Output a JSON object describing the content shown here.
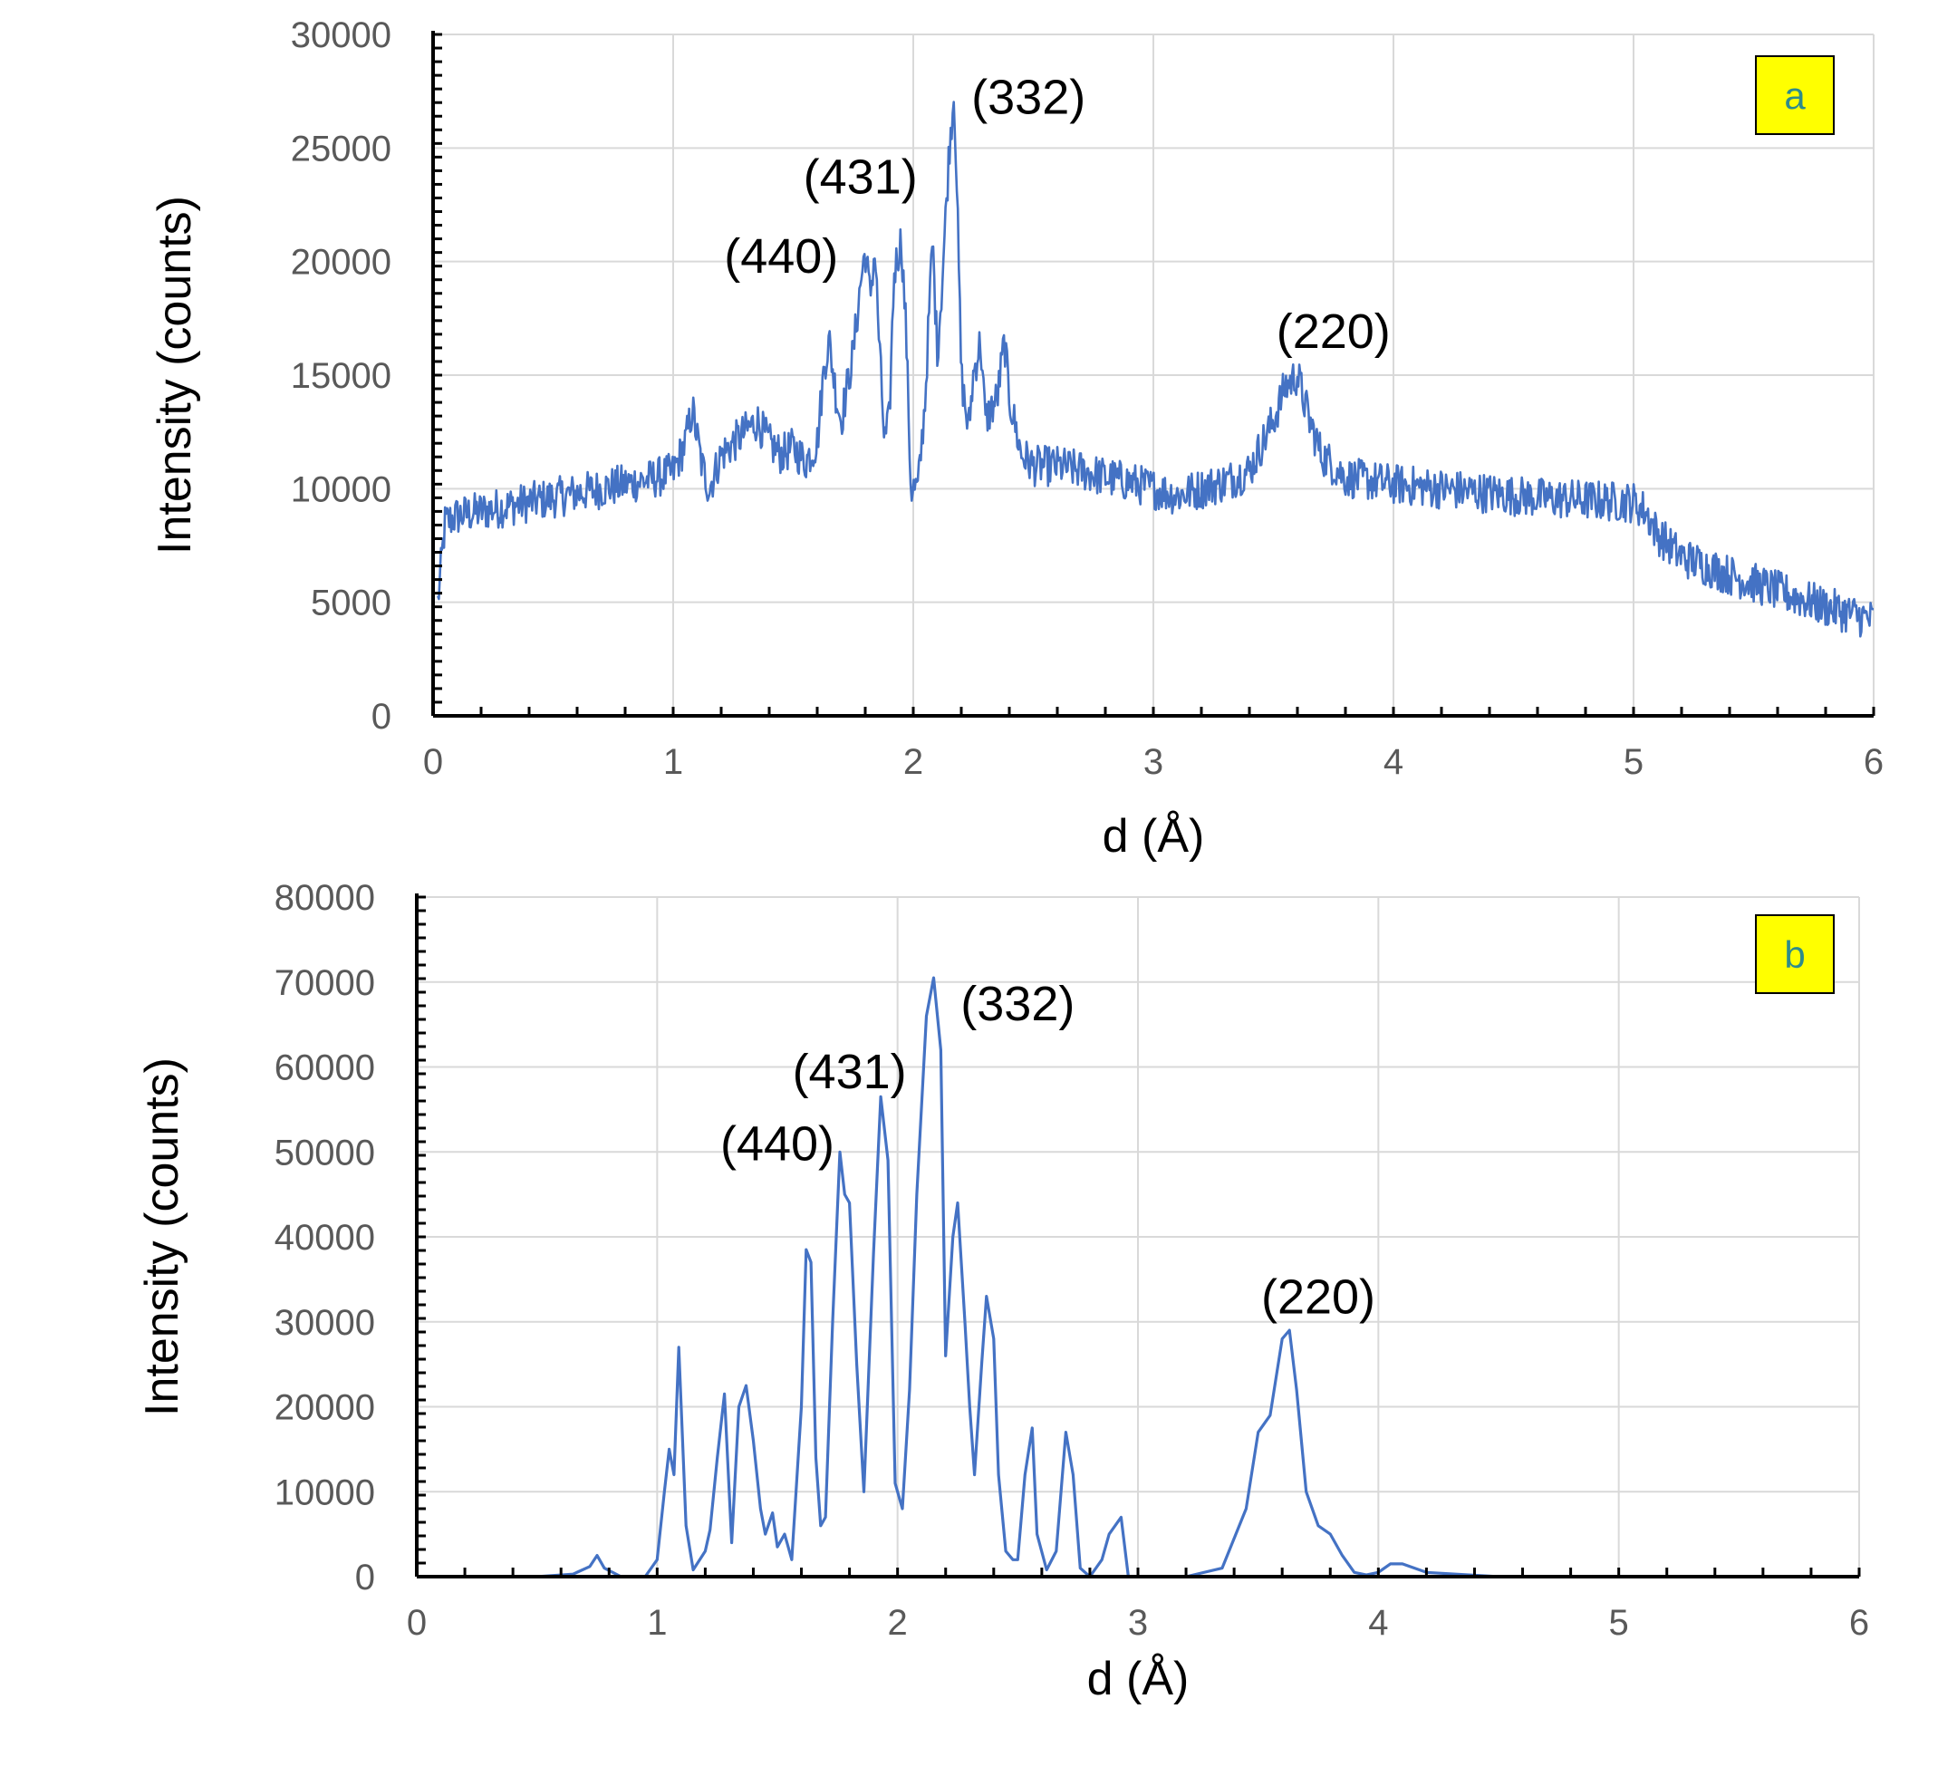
{
  "colors": {
    "series": "#4472C4",
    "grid": "#d9d9d9",
    "axis": "#000000",
    "tick_label": "#595959",
    "badge_fill": "#ffff00",
    "badge_text": "#2e8b8b"
  },
  "chart_data": [
    {
      "type": "line",
      "panel_label": "a",
      "xlabel": "d (Å)",
      "ylabel": "Intensity (counts)",
      "xlim": [
        0,
        6
      ],
      "ylim": [
        0,
        30000
      ],
      "xticks": [
        0,
        1,
        2,
        3,
        4,
        5,
        6
      ],
      "yticks": [
        0,
        5000,
        10000,
        15000,
        20000,
        25000,
        30000
      ],
      "grid": true,
      "noise_amplitude": 900,
      "annotations": [
        {
          "text": "(440)",
          "x": 1.45,
          "y": 19500
        },
        {
          "text": "(431)",
          "x": 1.78,
          "y": 23000
        },
        {
          "text": "(332)",
          "x": 2.48,
          "y": 26500
        },
        {
          "text": "(220)",
          "x": 3.75,
          "y": 16200
        }
      ],
      "series": [
        {
          "x": [
            0.02,
            0.05,
            0.1,
            0.2,
            0.3,
            0.4,
            0.5,
            0.6,
            0.7,
            0.8,
            0.9,
            1.0,
            1.05,
            1.08,
            1.12,
            1.15,
            1.2,
            1.25,
            1.3,
            1.35,
            1.4,
            1.45,
            1.5,
            1.55,
            1.6,
            1.63,
            1.65,
            1.68,
            1.7,
            1.75,
            1.78,
            1.8,
            1.82,
            1.84,
            1.86,
            1.88,
            1.9,
            1.92,
            1.95,
            1.97,
            1.99,
            2.02,
            2.05,
            2.08,
            2.1,
            2.12,
            2.15,
            2.17,
            2.18,
            2.2,
            2.23,
            2.25,
            2.28,
            2.3,
            2.35,
            2.38,
            2.4,
            2.45,
            2.5,
            2.6,
            2.7,
            2.8,
            2.9,
            3.0,
            3.1,
            3.2,
            3.3,
            3.4,
            3.5,
            3.55,
            3.6,
            3.65,
            3.7,
            3.8,
            4.0,
            4.2,
            4.4,
            4.6,
            4.8,
            5.0,
            5.05,
            5.1,
            5.2,
            5.4,
            5.6,
            5.8,
            6.0
          ],
          "y": [
            5000,
            8500,
            8800,
            9000,
            9200,
            9400,
            9600,
            9800,
            10000,
            10200,
            10400,
            10700,
            12000,
            13500,
            11000,
            10000,
            11500,
            12000,
            12500,
            13000,
            12000,
            11500,
            11800,
            11200,
            12000,
            15500,
            16500,
            14000,
            13000,
            16000,
            19000,
            20500,
            18500,
            20500,
            16000,
            12000,
            13000,
            19500,
            21000,
            17000,
            10000,
            10000,
            14000,
            21000,
            16000,
            19000,
            25000,
            27500,
            24000,
            15000,
            12500,
            15000,
            16500,
            13000,
            14000,
            16500,
            14000,
            11500,
            11000,
            11000,
            10800,
            10500,
            10300,
            10000,
            9700,
            10000,
            10300,
            10800,
            13000,
            14500,
            15000,
            13000,
            11500,
            10500,
            10200,
            10000,
            9800,
            9600,
            9500,
            9400,
            9000,
            8000,
            7000,
            6200,
            5500,
            4800,
            4200
          ]
        }
      ]
    },
    {
      "type": "line",
      "panel_label": "b",
      "xlabel": "d (Å)",
      "ylabel": "Intensity (counts)",
      "xlim": [
        0,
        6
      ],
      "ylim": [
        0,
        80000
      ],
      "xticks": [
        0,
        1,
        2,
        3,
        4,
        5,
        6
      ],
      "yticks": [
        0,
        10000,
        20000,
        30000,
        40000,
        50000,
        60000,
        70000,
        80000
      ],
      "grid": true,
      "annotations": [
        {
          "text": "(440)",
          "x": 1.5,
          "y": 49000
        },
        {
          "text": "(431)",
          "x": 1.8,
          "y": 57500
        },
        {
          "text": "(332)",
          "x": 2.5,
          "y": 65500
        },
        {
          "text": "(220)",
          "x": 3.75,
          "y": 31000
        }
      ],
      "series": [
        {
          "x": [
            0.05,
            0.5,
            0.65,
            0.72,
            0.75,
            0.78,
            0.85,
            0.95,
            1.0,
            1.03,
            1.05,
            1.07,
            1.09,
            1.12,
            1.15,
            1.2,
            1.22,
            1.25,
            1.28,
            1.31,
            1.34,
            1.37,
            1.4,
            1.43,
            1.45,
            1.48,
            1.5,
            1.53,
            1.56,
            1.6,
            1.62,
            1.64,
            1.66,
            1.68,
            1.7,
            1.73,
            1.76,
            1.78,
            1.8,
            1.83,
            1.86,
            1.9,
            1.93,
            1.96,
            1.99,
            2.02,
            2.05,
            2.08,
            2.12,
            2.15,
            2.18,
            2.2,
            2.23,
            2.25,
            2.28,
            2.3,
            2.32,
            2.35,
            2.37,
            2.4,
            2.42,
            2.45,
            2.48,
            2.5,
            2.53,
            2.56,
            2.58,
            2.62,
            2.66,
            2.7,
            2.73,
            2.76,
            2.8,
            2.85,
            2.88,
            2.93,
            2.96,
            3.0,
            3.2,
            3.35,
            3.45,
            3.5,
            3.55,
            3.6,
            3.63,
            3.66,
            3.7,
            3.75,
            3.8,
            3.85,
            3.9,
            3.95,
            4.0,
            4.05,
            4.1,
            4.2,
            4.5,
            5.0,
            5.5,
            6.0
          ],
          "y": [
            0,
            0,
            300,
            1200,
            2500,
            1000,
            0,
            0,
            2000,
            10000,
            15000,
            12000,
            27000,
            6000,
            800,
            3000,
            5500,
            14000,
            21500,
            4000,
            20000,
            22500,
            16000,
            8000,
            5000,
            7500,
            3500,
            5000,
            2000,
            20000,
            38500,
            37000,
            14000,
            6000,
            7000,
            30000,
            50000,
            45000,
            44000,
            25000,
            10000,
            38000,
            56500,
            49000,
            11000,
            8000,
            22000,
            45000,
            66000,
            70500,
            62000,
            26000,
            40000,
            44000,
            30000,
            20000,
            12000,
            25000,
            33000,
            28000,
            12000,
            3000,
            2000,
            2000,
            12000,
            17500,
            5000,
            800,
            3000,
            17000,
            12000,
            1000,
            0,
            2000,
            5000,
            7000,
            0,
            0,
            0,
            1000,
            8000,
            17000,
            19000,
            28000,
            29000,
            22000,
            10000,
            6000,
            5000,
            2500,
            500,
            200,
            500,
            1500,
            1500,
            500,
            0,
            0,
            0,
            0
          ]
        }
      ]
    }
  ]
}
